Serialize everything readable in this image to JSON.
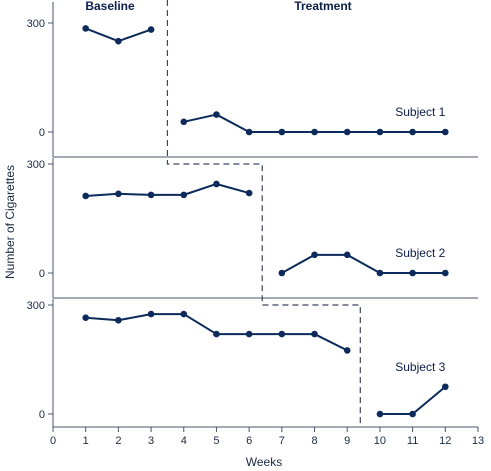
{
  "chart_data": {
    "type": "line",
    "title": "",
    "xlabel": "Weeks",
    "ylabel": "Number of Cigarettes",
    "x_ticks": [
      0,
      1,
      2,
      3,
      4,
      5,
      6,
      7,
      8,
      9,
      10,
      11,
      12,
      13
    ],
    "xlim": [
      0,
      13
    ],
    "ylim": [
      0,
      300
    ],
    "y_ticks": [
      0,
      300
    ],
    "phase_labels": {
      "baseline": "Baseline",
      "treatment": "Treatment"
    },
    "series_color": "#0c2a5a",
    "phase_line_color": "#3a4660",
    "panels": [
      {
        "name": "Subject 1",
        "phase_change_after_week": 3.5,
        "baseline": {
          "x": [
            1,
            2,
            3
          ],
          "y": [
            285,
            250,
            282
          ]
        },
        "treatment": {
          "x": [
            4,
            5,
            6,
            7,
            8,
            9,
            10,
            11,
            12
          ],
          "y": [
            28,
            48,
            0,
            0,
            0,
            0,
            0,
            0,
            0
          ]
        }
      },
      {
        "name": "Subject 2",
        "phase_change_after_week": 6.4,
        "baseline": {
          "x": [
            1,
            2,
            3,
            4,
            5,
            6
          ],
          "y": [
            212,
            218,
            215,
            215,
            245,
            220
          ]
        },
        "treatment": {
          "x": [
            7,
            8,
            9,
            10,
            11,
            12
          ],
          "y": [
            0,
            50,
            50,
            0,
            0,
            0
          ]
        }
      },
      {
        "name": "Subject 3",
        "phase_change_after_week": 9.4,
        "baseline": {
          "x": [
            1,
            2,
            3,
            4,
            5,
            6,
            7,
            8,
            9
          ],
          "y": [
            265,
            258,
            275,
            275,
            220,
            220,
            220,
            220,
            175
          ]
        },
        "treatment": {
          "x": [
            10,
            11,
            12
          ],
          "y": [
            0,
            0,
            75
          ]
        }
      }
    ]
  }
}
